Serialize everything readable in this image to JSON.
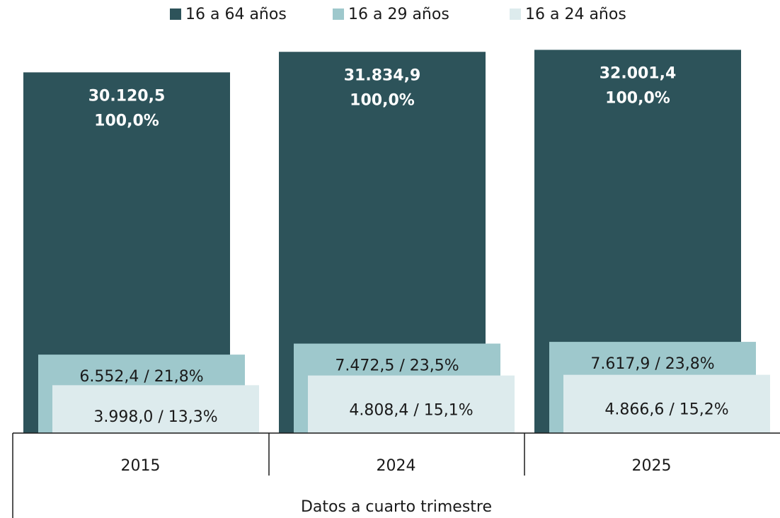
{
  "chart_data": {
    "type": "overlapping_bar",
    "categories": [
      "2015",
      "2024",
      "2025"
    ],
    "xlabel": "Datos a cuarto trimestre",
    "ylim": [
      0,
      32500
    ],
    "label_separator": " / ",
    "series": [
      {
        "name": "16 a 64 años",
        "color": "#2d535a",
        "label_color": "#ffffff",
        "values": [
          30120.5,
          31834.9,
          32001.4
        ],
        "value_labels": [
          "30.120,5",
          "31.834,9",
          "32.001,4"
        ],
        "shares": [
          100.0,
          100.0,
          100.0
        ],
        "share_labels": [
          "100,0%",
          "100,0%",
          "100,0%"
        ]
      },
      {
        "name": "16 a 29 años",
        "color": "#9ec8cc",
        "label_color": "#1a1a1a",
        "values": [
          6552.4,
          7472.5,
          7617.9
        ],
        "value_labels": [
          "6.552,4",
          "7.472,5",
          "7.617,9"
        ],
        "shares": [
          21.8,
          23.5,
          23.8
        ],
        "share_labels": [
          "21,8%",
          "23,5%",
          "23,8%"
        ]
      },
      {
        "name": "16 a 24 años",
        "color": "#ddebed",
        "label_color": "#1a1a1a",
        "values": [
          3998.0,
          4808.4,
          4866.6
        ],
        "value_labels": [
          "3.998,0",
          "4.808,4",
          "4.866,6"
        ],
        "shares": [
          13.3,
          15.1,
          15.2
        ],
        "share_labels": [
          "13,3%",
          "15,1%",
          "15,2%"
        ]
      }
    ]
  }
}
